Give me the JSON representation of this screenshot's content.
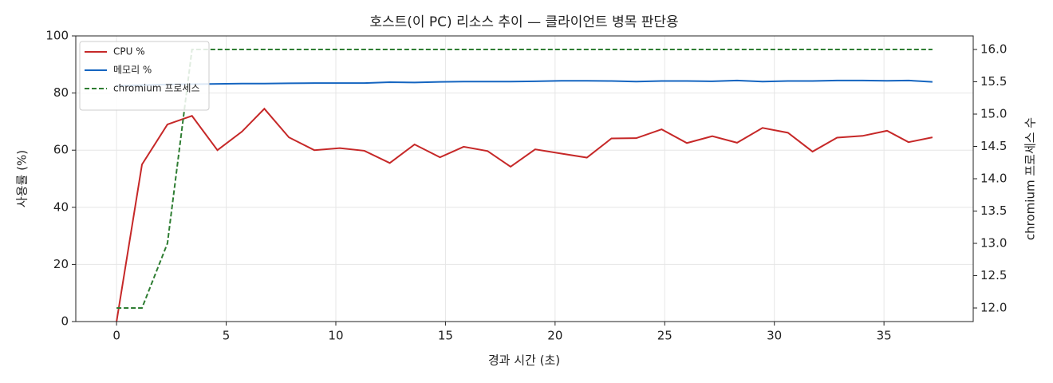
{
  "chart_data": {
    "type": "line",
    "title": "호스트(이 PC) 리소스 추이 — 클라이언트 병목 판단용",
    "x_label": "경과 시간 (초)",
    "y_label": "사용률 (%)",
    "y2_label": "chromium 프로세스 수",
    "x": [
      0,
      1.16,
      2.32,
      3.44,
      4.6,
      5.72,
      6.74,
      7.86,
      9.02,
      10.18,
      11.3,
      12.46,
      13.59,
      14.75,
      15.83,
      16.92,
      17.97,
      19.09,
      20.29,
      21.45,
      22.57,
      23.7,
      24.86,
      26.01,
      27.17,
      28.3,
      29.46,
      30.62,
      31.74,
      32.86,
      34.02,
      35.14,
      36.12,
      37.21
    ],
    "series": [
      {
        "name": "CPU %",
        "color": "#c62828",
        "linestyle": "solid",
        "values": [
          0,
          55,
          69,
          72,
          60,
          66.5,
          74.5,
          64.5,
          60,
          60.7,
          59.8,
          55.5,
          62,
          57.5,
          61.2,
          59.7,
          54.2,
          60.3,
          58.8,
          57.4,
          64.1,
          64.2,
          67.3,
          62.5,
          64.9,
          62.6,
          67.8,
          66.1,
          59.5,
          64.4,
          65,
          66.8,
          62.8,
          64.5
        ]
      },
      {
        "name": "메모리 %",
        "color": "#1565c0",
        "linestyle": "solid",
        "values": [
          82.5,
          82.8,
          83,
          83.1,
          83.2,
          83.3,
          83.3,
          83.4,
          83.5,
          83.5,
          83.5,
          83.8,
          83.7,
          83.9,
          84,
          84,
          84,
          84.1,
          84.3,
          84.3,
          84.2,
          84,
          84.2,
          84.2,
          84.1,
          84.4,
          84,
          84.2,
          84.2,
          84.4,
          84.4,
          84.3,
          84.4,
          83.9
        ]
      },
      {
        "name": "chromium 프로세스",
        "color": "#2e7d32",
        "linestyle": "dashed",
        "axis": "y2",
        "values": [
          12,
          12,
          13,
          16,
          16,
          16,
          16,
          16,
          16,
          16,
          16,
          16,
          16,
          16,
          16,
          16,
          16,
          16,
          16,
          16,
          16,
          16,
          16,
          16,
          16,
          16,
          16,
          16,
          16,
          16,
          16,
          16,
          16,
          16
        ]
      }
    ],
    "xlim": [
      -1.86,
      39.07
    ],
    "xticks": [
      0,
      5,
      10,
      15,
      20,
      25,
      30,
      35
    ],
    "ylim": [
      0,
      100
    ],
    "yticks": [
      0,
      20,
      40,
      60,
      80,
      100
    ],
    "y2lim": [
      11.79,
      16.21
    ],
    "y2ticks": [
      {
        "value": 12,
        "label": "12.0"
      },
      {
        "value": 12.5,
        "label": "12.5"
      },
      {
        "value": 13,
        "label": "13.0"
      },
      {
        "value": 13.5,
        "label": "13.5"
      },
      {
        "value": 14,
        "label": "14.0"
      },
      {
        "value": 14.5,
        "label": "14.5"
      },
      {
        "value": 15,
        "label": "15.0"
      },
      {
        "value": 15.5,
        "label": "15.5"
      },
      {
        "value": 16,
        "label": "16.0"
      }
    ],
    "grid": true,
    "legend": "upper left"
  }
}
